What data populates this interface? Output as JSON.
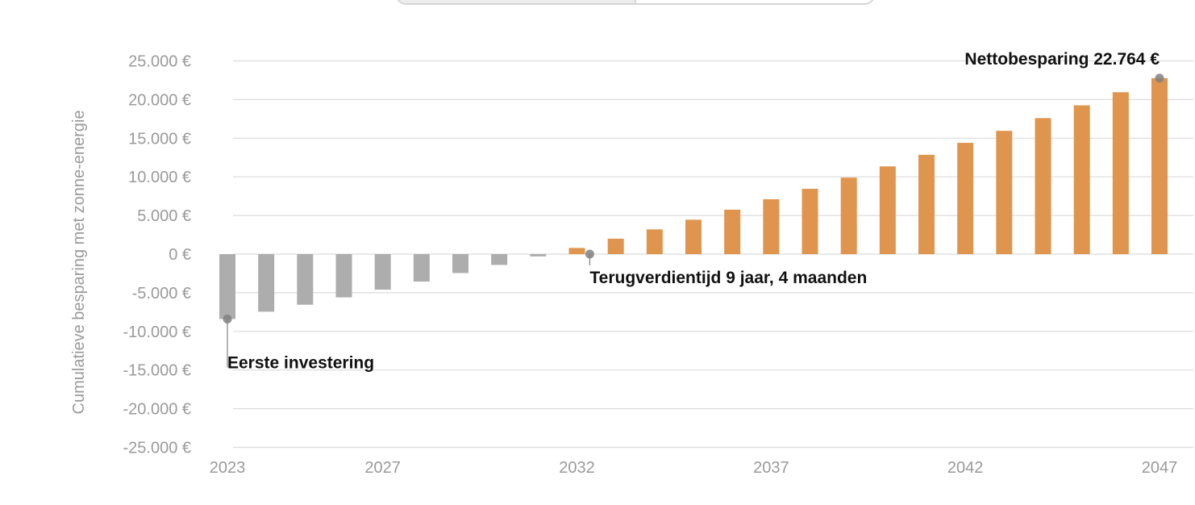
{
  "view_toggle": {
    "options": [
      "",
      ""
    ],
    "selected_index": 0
  },
  "colors": {
    "negative_bar": "#adadad",
    "positive_bar": "#e0954e",
    "grid": "#dcdcdc",
    "axis_text": "#9a9a9a",
    "annotation_marker": "#808080",
    "annotation_text": "#111111"
  },
  "chart_data": {
    "type": "bar",
    "title": "",
    "xlabel": "",
    "ylabel": "Cumulatieve besparing met zonne-energie",
    "ylim": [
      -25000,
      25000
    ],
    "grid": true,
    "x": [
      2023,
      2024,
      2025,
      2026,
      2027,
      2028,
      2029,
      2030,
      2031,
      2032,
      2033,
      2034,
      2035,
      2036,
      2037,
      2038,
      2039,
      2040,
      2041,
      2042,
      2043,
      2044,
      2045,
      2046,
      2047
    ],
    "values": [
      -8400,
      -7450,
      -6550,
      -5600,
      -4600,
      -3550,
      -2450,
      -1400,
      -300,
      800,
      2000,
      3200,
      4450,
      5750,
      7100,
      8450,
      9900,
      11350,
      12850,
      14400,
      15950,
      17600,
      19250,
      20950,
      22764
    ],
    "x_ticks": [
      "2023",
      "2027",
      "2032",
      "2037",
      "2042",
      "2047"
    ],
    "y_ticks": [
      "25.000 €",
      "20.000 €",
      "15.000 €",
      "10.000 €",
      "5.000 €",
      "0 €",
      "-5.000 €",
      "-10.000 €",
      "-15.000 €",
      "-20.000 €",
      "-25.000 €"
    ],
    "annotations": [
      {
        "label": "Eerste investering",
        "x": 2023,
        "y": -8400
      },
      {
        "label": "Terugverdientijd 9 jaar, 4 maanden",
        "x": 2032.33,
        "y": 0
      },
      {
        "label": "Nettobesparing 22.764 €",
        "x": 2047,
        "y": 22764
      }
    ]
  }
}
